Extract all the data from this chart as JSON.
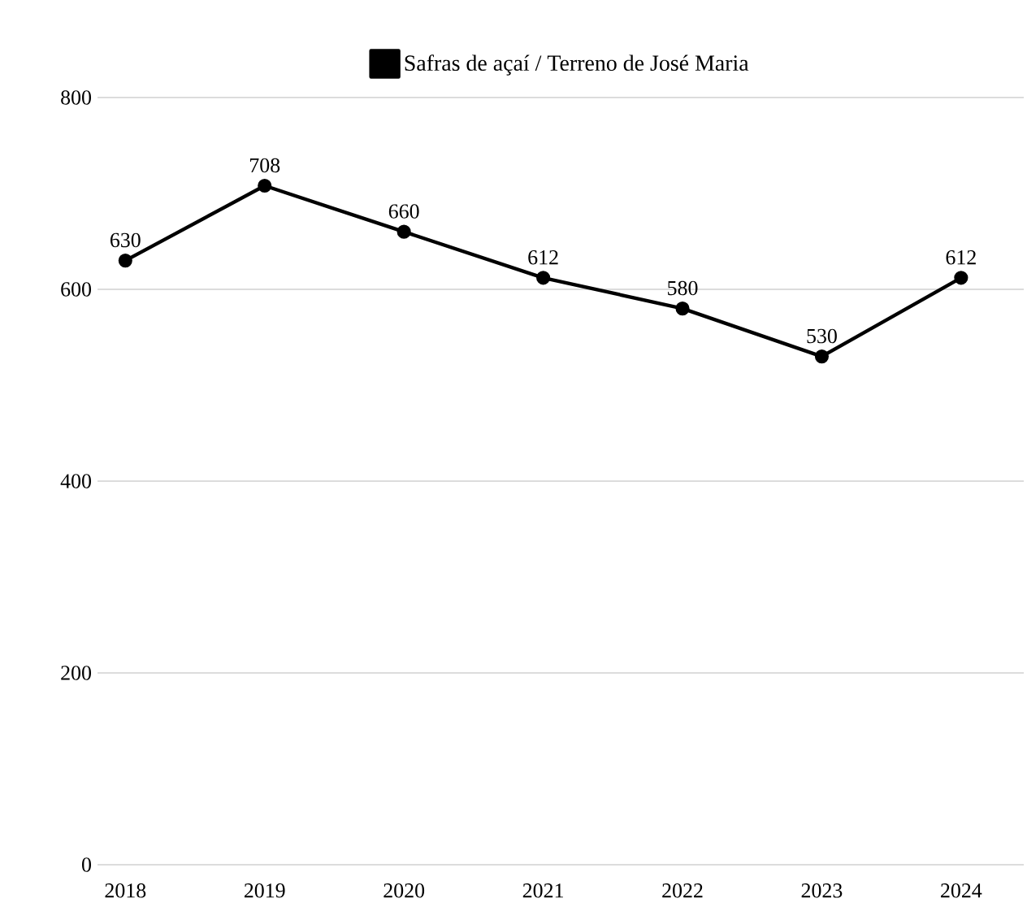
{
  "chart_data": {
    "type": "line",
    "categories": [
      "2018",
      "2019",
      "2020",
      "2021",
      "2022",
      "2023",
      "2024"
    ],
    "series": [
      {
        "name": "Safras de açaí / Terreno de José Maria",
        "color": "#000000",
        "values": [
          630,
          708,
          660,
          612,
          580,
          530,
          612
        ]
      }
    ],
    "ylim": [
      0,
      800
    ],
    "yticks": [
      0,
      200,
      400,
      600,
      800
    ],
    "grid": "y",
    "legend": "top",
    "marker": "circle",
    "line_style": "solid",
    "data_labels": true
  }
}
